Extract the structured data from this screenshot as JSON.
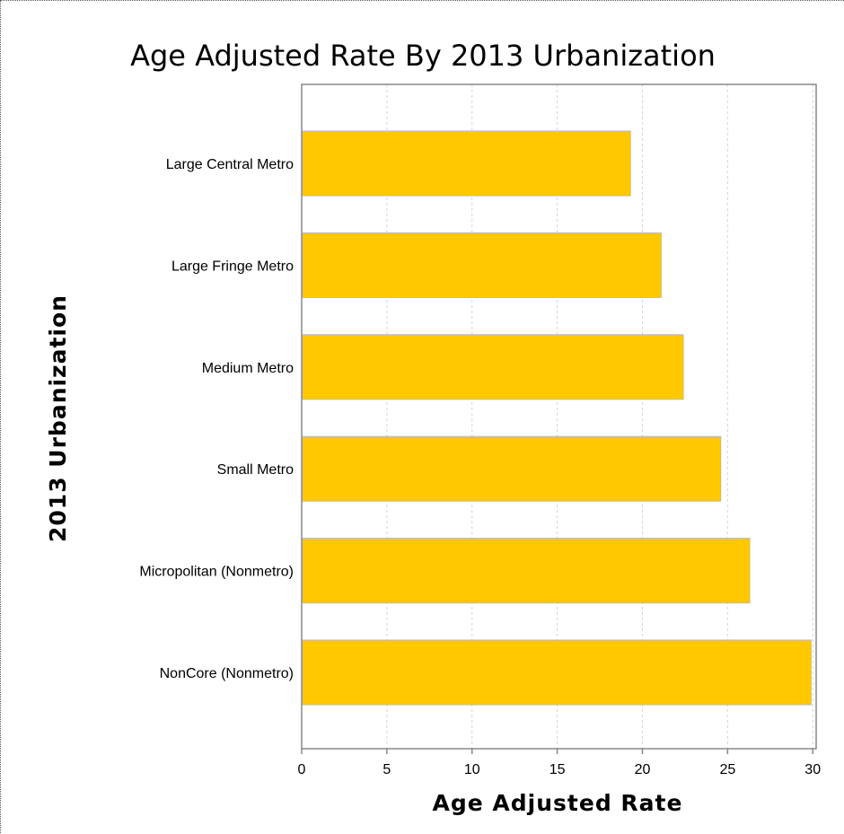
{
  "chart_data": {
    "type": "bar",
    "orientation": "horizontal",
    "title": "Age Adjusted Rate By 2013 Urbanization",
    "xlabel": "Age Adjusted Rate",
    "ylabel": "2013 Urbanization",
    "categories": [
      "Large Central Metro",
      "Large Fringe Metro",
      "Medium Metro",
      "Small Metro",
      "Micropolitan (Nonmetro)",
      "NonCore (Nonmetro)"
    ],
    "values": [
      19.3,
      21.1,
      22.4,
      24.6,
      26.3,
      29.9
    ],
    "xlim": [
      0,
      30
    ],
    "xticks": [
      0,
      5,
      10,
      15,
      20,
      25,
      30
    ],
    "grid": "vertical dashed",
    "legend": "none",
    "colors": {
      "bar": "#FFC800",
      "bar_edge": "#b8b8b8",
      "axis": "#888888",
      "grid": "#d4d4d4"
    }
  }
}
